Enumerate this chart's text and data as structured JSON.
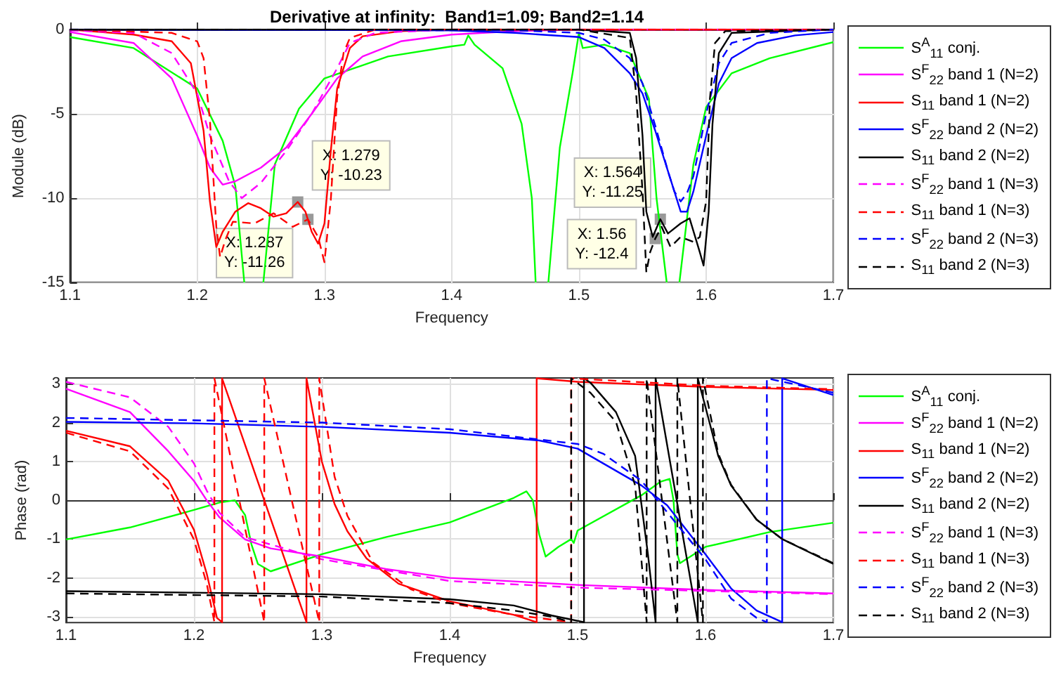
{
  "chart_data": [
    {
      "type": "line",
      "title": "Derivative at infinity:  Band1=1.09; Band2=1.14",
      "xlabel": "Frequency",
      "ylabel": "Module (dB)",
      "xlim": [
        1.1,
        1.7
      ],
      "ylim": [
        -15,
        0
      ],
      "xticks": [
        1.1,
        1.2,
        1.3,
        1.4,
        1.5,
        1.6,
        1.7
      ],
      "yticks": [
        -15,
        -10,
        -5,
        0
      ],
      "grid": true,
      "legend": "right",
      "annotations": [
        {
          "text": "X: 1.279\nY: -10.23",
          "x": 1.279,
          "y": -10.23
        },
        {
          "text": "X: 1.287\nY: -11.26",
          "x": 1.287,
          "y": -11.26
        },
        {
          "text": "X: 1.564\nY: -11.25",
          "x": 1.564,
          "y": -11.25
        },
        {
          "text": "X: 1.56\nY: -12.4",
          "x": 1.56,
          "y": -12.4
        }
      ],
      "series": [
        {
          "name": "S$^{A}$$_{11}$ conj.",
          "color": "#00ff00",
          "line_style": "solid",
          "x": [
            1.1,
            1.15,
            1.2,
            1.22,
            1.23,
            1.237,
            1.245,
            1.252,
            1.261,
            1.28,
            1.3,
            1.35,
            1.4,
            1.41,
            1.413,
            1.418,
            1.44,
            1.455,
            1.463,
            1.466,
            1.47,
            1.476,
            1.485,
            1.495,
            1.5,
            1.503,
            1.52,
            1.54,
            1.555,
            1.561,
            1.569,
            1.574,
            1.579,
            1.59,
            1.6,
            1.62,
            1.65,
            1.7
          ],
          "values": [
            -0.45,
            -1.1,
            -3.5,
            -6.6,
            -9.3,
            -15,
            null,
            -15,
            -8,
            -4.7,
            -2.9,
            -1.6,
            -1,
            -0.9,
            -0.35,
            -0.9,
            -2.3,
            -5.6,
            -10,
            -15,
            null,
            -15,
            -7,
            -2.6,
            -0.2,
            -1.1,
            -0.9,
            -1.4,
            -4.1,
            -10,
            -15,
            null,
            -15,
            -8,
            -4.6,
            -2.6,
            -1.7,
            -0.75
          ]
        },
        {
          "name": "S$^{F}$$_{22}$ band 1 (N=2)",
          "color": "#ff00ff",
          "line_style": "solid",
          "x": [
            1.1,
            1.15,
            1.18,
            1.2,
            1.21,
            1.22,
            1.23,
            1.25,
            1.27,
            1.29,
            1.31,
            1.33,
            1.36,
            1.4,
            1.45,
            1.5,
            1.7
          ],
          "values": [
            -0.15,
            -0.8,
            -2.9,
            -6.3,
            -8.2,
            -9.2,
            -9,
            -8.2,
            -7,
            -5,
            -2.9,
            -1.6,
            -0.7,
            -0.3,
            -0.1,
            0,
            0
          ]
        },
        {
          "name": "S$_{11}$ band 1 (N=2)",
          "color": "#ff0000",
          "line_style": "solid",
          "x": [
            1.1,
            1.15,
            1.18,
            1.195,
            1.205,
            1.21,
            1.215,
            1.22,
            1.225,
            1.23,
            1.24,
            1.25,
            1.26,
            1.27,
            1.279,
            1.285,
            1.29,
            1.295,
            1.3,
            1.305,
            1.31,
            1.32,
            1.33,
            1.36,
            1.4,
            1.7
          ],
          "values": [
            0,
            -0.3,
            -0.7,
            -2,
            -6,
            -10.2,
            -12.9,
            -12,
            -11.4,
            -10.8,
            -10.3,
            -10.6,
            -11.1,
            -10.9,
            -10.23,
            -10.8,
            -12,
            -12.7,
            -11.5,
            -7.2,
            -3.5,
            -1.1,
            -0.4,
            -0.1,
            0,
            0
          ]
        },
        {
          "name": "S$^{F}$$_{22}$ band 2 (N=2)",
          "color": "#0000ff",
          "line_style": "solid",
          "x": [
            1.1,
            1.4,
            1.45,
            1.5,
            1.52,
            1.54,
            1.55,
            1.56,
            1.57,
            1.58,
            1.585,
            1.59,
            1.6,
            1.61,
            1.62,
            1.64,
            1.67,
            1.7
          ],
          "values": [
            0,
            -0.05,
            -0.2,
            -0.45,
            -1.1,
            -2.6,
            -3.8,
            -6,
            -8.4,
            -10.8,
            -10.8,
            -9.6,
            -6.3,
            -3.2,
            -1.7,
            -0.8,
            -0.35,
            -0.15
          ]
        },
        {
          "name": "S$_{11}$ band 2 (N=2)",
          "color": "#000000",
          "line_style": "solid",
          "x": [
            1.1,
            1.5,
            1.54,
            1.545,
            1.55,
            1.553,
            1.558,
            1.564,
            1.57,
            1.58,
            1.587,
            1.595,
            1.598,
            1.602,
            1.605,
            1.61,
            1.62,
            1.7
          ],
          "values": [
            0,
            0,
            -0.2,
            -1.7,
            -6.3,
            -10.8,
            -12.3,
            -11.25,
            -12.1,
            -11.5,
            -11.2,
            -13.2,
            -14,
            -10.8,
            -5.6,
            -1.4,
            -0.2,
            0
          ]
        },
        {
          "name": "S$^{F}$$_{22}$ band 1 (N=3)",
          "color": "#ff00ff",
          "line_style": "dashed",
          "x": [
            1.1,
            1.15,
            1.18,
            1.2,
            1.21,
            1.225,
            1.235,
            1.25,
            1.27,
            1.29,
            1.31,
            1.32,
            1.34,
            1.4,
            1.7
          ],
          "values": [
            -0.05,
            -0.2,
            -1.4,
            -3.8,
            -6.3,
            -9,
            -10,
            -9.1,
            -7.2,
            -5,
            -2.3,
            -0.8,
            -0.2,
            0,
            0
          ]
        },
        {
          "name": "S$_{11}$ band 1 (N=3)",
          "color": "#ff0000",
          "line_style": "dashed",
          "x": [
            1.1,
            1.18,
            1.2,
            1.205,
            1.21,
            1.215,
            1.218,
            1.222,
            1.228,
            1.245,
            1.26,
            1.275,
            1.287,
            1.295,
            1.3,
            1.305,
            1.31,
            1.315,
            1.32,
            1.34,
            1.7
          ],
          "values": [
            0,
            -0.2,
            -0.7,
            -1.7,
            -5.4,
            -11.7,
            -13.5,
            -12.5,
            -11.4,
            -11.5,
            -10.9,
            -11.7,
            -11.26,
            -12.3,
            -13.8,
            -10.1,
            -4,
            -1.4,
            -0.5,
            0,
            0
          ]
        },
        {
          "name": "S$^{F}$$_{22}$ band 2 (N=3)",
          "color": "#0000ff",
          "line_style": "dashed",
          "x": [
            1.1,
            1.45,
            1.5,
            1.52,
            1.54,
            1.55,
            1.56,
            1.57,
            1.575,
            1.58,
            1.585,
            1.59,
            1.6,
            1.61,
            1.62,
            1.65,
            1.7
          ],
          "values": [
            0,
            -0.05,
            -0.2,
            -0.6,
            -1.7,
            -3.2,
            -5.7,
            -8.4,
            -9.6,
            -10.2,
            -9.7,
            -8.7,
            -5,
            -2,
            -0.8,
            -0.2,
            0
          ]
        },
        {
          "name": "S$_{11}$ band 2 (N=3)",
          "color": "#000000",
          "line_style": "dashed",
          "x": [
            1.1,
            1.5,
            1.54,
            1.545,
            1.55,
            1.553,
            1.556,
            1.56,
            1.565,
            1.572,
            1.58,
            1.59,
            1.595,
            1.6,
            1.603,
            1.607,
            1.615,
            1.7
          ],
          "values": [
            0,
            0,
            -0.5,
            -3.8,
            -9.6,
            -14.4,
            -13.2,
            -12.4,
            -11.7,
            -12.9,
            -12.3,
            -12.6,
            -12.3,
            -10.2,
            -4.1,
            -0.8,
            -0.1,
            0
          ]
        }
      ]
    },
    {
      "type": "line",
      "xlabel": "Frequency",
      "ylabel": "Phase (rad)",
      "xlim": [
        1.1,
        1.7
      ],
      "ylim": [
        -3.15,
        3.15
      ],
      "xticks": [
        1.1,
        1.2,
        1.3,
        1.4,
        1.5,
        1.6,
        1.7
      ],
      "yticks": [
        -3,
        -2,
        -1,
        0,
        1,
        2,
        3
      ],
      "grid": true,
      "legend": "right",
      "series": [
        {
          "name": "S$^{A}$$_{11}$ conj.",
          "color": "#00ff00",
          "line_style": "solid",
          "x": [
            1.1,
            1.15,
            1.2,
            1.22,
            1.232,
            1.24,
            1.245,
            1.25,
            1.26,
            1.3,
            1.35,
            1.4,
            1.45,
            1.46,
            1.465,
            1.47,
            1.475,
            1.485,
            1.495,
            1.497,
            1.5,
            1.55,
            1.565,
            1.572,
            1.575,
            1.578,
            1.58,
            1.6,
            1.65,
            1.7
          ],
          "values": [
            -1.01,
            -0.7,
            -0.25,
            -0.06,
            0,
            -0.38,
            -1.14,
            -1.64,
            -1.83,
            -1.39,
            -0.95,
            -0.57,
            0.06,
            0.23,
            0,
            -0.88,
            -1.45,
            -1.2,
            -1.0,
            -1.1,
            -0.78,
            0.13,
            0.48,
            0.55,
            0,
            -1.39,
            -1.62,
            -1.2,
            -0.82,
            -0.58
          ]
        },
        {
          "name": "S$^{F}$$_{22}$ band 1 (N=2)",
          "color": "#ff00ff",
          "line_style": "solid",
          "x": [
            1.1,
            1.15,
            1.18,
            1.2,
            1.21,
            1.22,
            1.24,
            1.26,
            1.3,
            1.35,
            1.4,
            1.5,
            1.6,
            1.7
          ],
          "values": [
            2.87,
            2.27,
            1.26,
            0.5,
            0,
            -0.44,
            -1.01,
            -1.24,
            -1.45,
            -1.77,
            -2,
            -2.18,
            -2.31,
            -2.4
          ]
        },
        {
          "name": "S$_{11}$ band 1 (N=2)",
          "color": "#ff0000",
          "line_style": "solid",
          "x": [
            1.1,
            1.15,
            1.18,
            1.2,
            1.21,
            1.218,
            1.222,
            1.222,
            1.288,
            1.288,
            1.3,
            1.31,
            1.32,
            1.335,
            1.36,
            1.4,
            1.45,
            1.468,
            1.468,
            1.5,
            1.6,
            1.7
          ],
          "values": [
            1.79,
            1.39,
            0.5,
            -0.76,
            -1.89,
            -3.03,
            -3.14,
            3.14,
            -3.14,
            3.14,
            1.0,
            -0.1,
            -0.8,
            -1.5,
            -2.15,
            -2.6,
            -2.95,
            -3.14,
            3.14,
            3.05,
            2.92,
            2.84
          ]
        },
        {
          "name": "S$^{F}$$_{22}$ band 2 (N=2)",
          "color": "#0000ff",
          "line_style": "solid",
          "x": [
            1.1,
            1.2,
            1.3,
            1.4,
            1.47,
            1.5,
            1.52,
            1.55,
            1.57,
            1.6,
            1.62,
            1.64,
            1.66,
            1.66,
            1.7
          ],
          "values": [
            2.02,
            1.98,
            1.89,
            1.74,
            1.54,
            1.33,
            0.95,
            0.38,
            -0.13,
            -1.39,
            -2.27,
            -2.84,
            -3.14,
            3.14,
            2.71
          ]
        },
        {
          "name": "S$_{11}$ band 2 (N=2)",
          "color": "#000000",
          "line_style": "solid",
          "x": [
            1.1,
            1.3,
            1.4,
            1.45,
            1.48,
            1.505,
            1.505,
            1.51,
            1.53,
            1.545,
            1.555,
            1.561,
            1.561,
            1.594,
            1.594,
            1.6,
            1.61,
            1.62,
            1.64,
            1.66,
            1.7
          ],
          "values": [
            -2.34,
            -2.42,
            -2.55,
            -2.71,
            -2.97,
            -3.14,
            3.14,
            3.03,
            2.27,
            1.14,
            -1.39,
            -3.14,
            3.14,
            -3.14,
            3.14,
            2.4,
            1.14,
            0.38,
            -0.5,
            -1.0,
            -1.64
          ]
        },
        {
          "name": "S$^{F}$$_{22}$ band 1 (N=3)",
          "color": "#ff00ff",
          "line_style": "dashed",
          "x": [
            1.1,
            1.15,
            1.18,
            1.2,
            1.21,
            1.22,
            1.24,
            1.3,
            1.4,
            1.5,
            1.7
          ],
          "values": [
            3.05,
            2.65,
            1.89,
            0.95,
            0.25,
            -0.32,
            -0.95,
            -1.52,
            -2.08,
            -2.25,
            -2.42
          ]
        },
        {
          "name": "S$_{11}$ band 1 (N=3)",
          "color": "#ff0000",
          "line_style": "dashed",
          "x": [
            1.1,
            1.15,
            1.18,
            1.2,
            1.21,
            1.215,
            1.216,
            1.216,
            1.255,
            1.255,
            1.298,
            1.298,
            1.31,
            1.32,
            1.34,
            1.37,
            1.4,
            1.45,
            1.495,
            1.495,
            1.6,
            1.7
          ],
          "values": [
            1.74,
            1.26,
            0.3,
            -1.01,
            -2.15,
            -2.97,
            -3.14,
            3.14,
            -3.14,
            3.14,
            -3.14,
            3.14,
            0.6,
            -0.4,
            -1.6,
            -2.3,
            -2.65,
            -2.95,
            -3.14,
            3.14,
            2.95,
            2.86
          ]
        },
        {
          "name": "S$^{F}$$_{22}$ band 2 (N=3)",
          "color": "#0000ff",
          "line_style": "dashed",
          "x": [
            1.1,
            1.3,
            1.4,
            1.5,
            1.52,
            1.55,
            1.6,
            1.62,
            1.64,
            1.648,
            1.648,
            1.7
          ],
          "values": [
            2.12,
            2.0,
            1.83,
            1.45,
            1.2,
            0.5,
            -1.52,
            -2.53,
            -3.03,
            -3.14,
            3.14,
            2.77
          ]
        },
        {
          "name": "S$_{11}$ band 2 (N=3)",
          "color": "#000000",
          "line_style": "dashed",
          "x": [
            1.1,
            1.3,
            1.4,
            1.45,
            1.48,
            1.495,
            1.495,
            1.51,
            1.53,
            1.545,
            1.554,
            1.554,
            1.578,
            1.578,
            1.598,
            1.598,
            1.61,
            1.62,
            1.64,
            1.66,
            1.7
          ],
          "values": [
            -2.4,
            -2.48,
            -2.65,
            -2.84,
            -3.0,
            -3.14,
            3.14,
            2.77,
            2.02,
            0.38,
            -3.14,
            3.14,
            -3.14,
            3.14,
            -3.14,
            3.14,
            1.2,
            0.4,
            -0.5,
            -1.0,
            -1.62
          ]
        }
      ]
    }
  ]
}
